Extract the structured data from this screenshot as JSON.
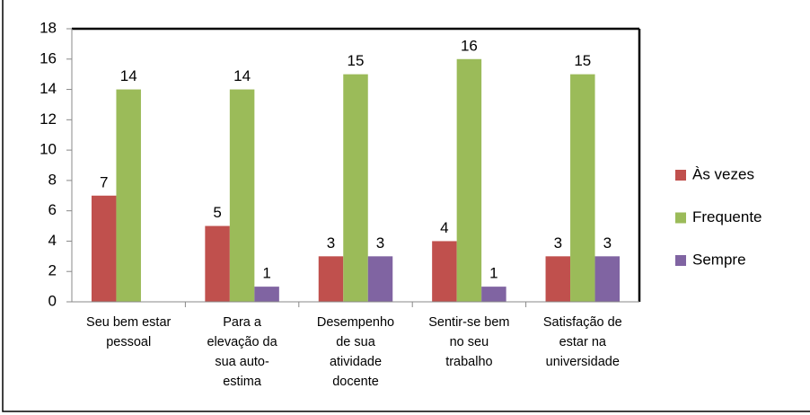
{
  "chart_data": {
    "type": "bar",
    "categories": [
      "Seu bem estar\npessoal",
      "Para a\nelevação da\nsua auto-\nestima",
      "Desempenho\nde sua\natividade\ndocente",
      "Sentir-se bem\nno seu\ntrabalho",
      "Satisfação de\nestar na\nuniversidade"
    ],
    "series": [
      {
        "name": "Às vezes",
        "color": "#c0504d",
        "values": [
          7,
          5,
          3,
          4,
          3
        ]
      },
      {
        "name": "Frequente",
        "color": "#9bbb59",
        "values": [
          14,
          14,
          15,
          16,
          15
        ]
      },
      {
        "name": "Sempre",
        "color": "#8064a2",
        "values": [
          null,
          1,
          3,
          1,
          3
        ]
      }
    ],
    "ylim": [
      0,
      18
    ],
    "yticks": [
      0,
      2,
      4,
      6,
      8,
      10,
      12,
      14,
      16,
      18
    ],
    "grid": false,
    "legend": "right"
  }
}
